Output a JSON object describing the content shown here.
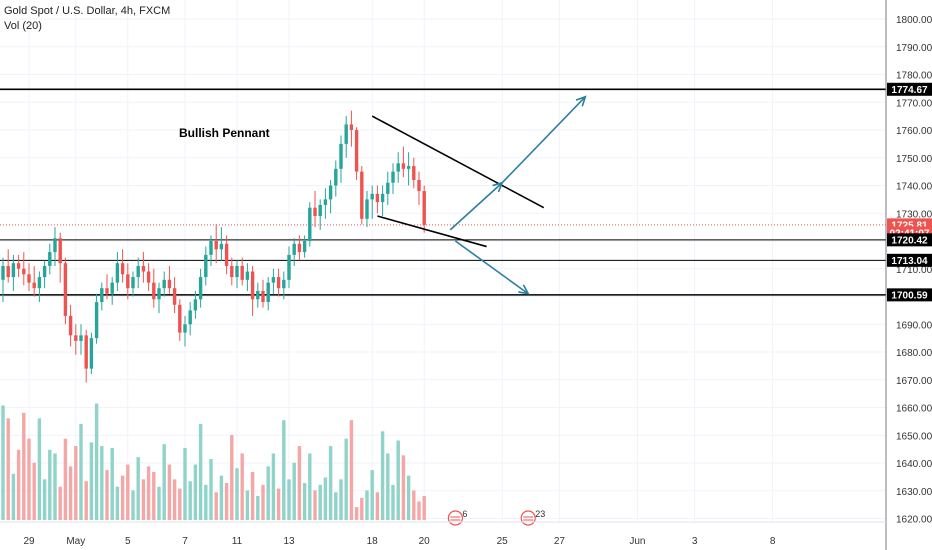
{
  "header": {
    "symbol_line": "Gold Spot / U.S. Dollar, 4h, FXCM",
    "volume_line": "Vol (20)"
  },
  "annotation": {
    "label": "Bullish Pennant"
  },
  "colors": {
    "up": "#26a69a",
    "down": "#ef5350",
    "up_volume": "#8fd3c9",
    "down_volume": "#f4a7a6",
    "arrow": "#2a7fa0",
    "level_line": "#000000",
    "price_marker": "#ef5350"
  },
  "chart_data": {
    "type": "candlestick",
    "title": "Gold Spot / U.S. Dollar, 4h, FXCM",
    "timeframe": "4h",
    "y_axis": {
      "min": 1615,
      "max": 1805,
      "ticks": [
        1620,
        1630,
        1640,
        1650,
        1660,
        1670,
        1680,
        1690,
        1700,
        1710,
        1720,
        1730,
        1740,
        1750,
        1760,
        1770,
        1780,
        1790,
        1800
      ],
      "tick_labels": [
        "1620.00",
        "1630.00",
        "1640.00",
        "1650.00",
        "1660.00",
        "1670.00",
        "1680.00",
        "1690.00",
        "1700.00",
        "1710.00",
        "1720.00",
        "1730.00",
        "1740.00",
        "1750.00",
        "1760.00",
        "1770.00",
        "1780.00",
        "1790.00",
        "1800.00"
      ]
    },
    "x_axis": {
      "ticks": [
        {
          "label": "29",
          "bar": 5
        },
        {
          "label": "May",
          "bar": 14
        },
        {
          "label": "5",
          "bar": 24
        },
        {
          "label": "7",
          "bar": 35
        },
        {
          "label": "11",
          "bar": 45
        },
        {
          "label": "13",
          "bar": 55
        },
        {
          "label": "18",
          "bar": 71
        },
        {
          "label": "20",
          "bar": 81
        },
        {
          "label": "25",
          "bar": 96
        },
        {
          "label": "27",
          "bar": 107
        },
        {
          "label": "Jun",
          "bar": 122
        },
        {
          "label": "3",
          "bar": 133
        },
        {
          "label": "8",
          "bar": 148
        }
      ]
    },
    "ohlc": [
      [
        1706,
        1714,
        1698,
        1711
      ],
      [
        1711,
        1717,
        1705,
        1707
      ],
      [
        1707,
        1715,
        1702,
        1712
      ],
      [
        1712,
        1715,
        1707,
        1710
      ],
      [
        1710,
        1716,
        1704,
        1708
      ],
      [
        1708,
        1712,
        1702,
        1705
      ],
      [
        1705,
        1711,
        1700,
        1703
      ],
      [
        1703,
        1709,
        1698,
        1707
      ],
      [
        1707,
        1713,
        1703,
        1711
      ],
      [
        1711,
        1719,
        1708,
        1716
      ],
      [
        1716,
        1725,
        1711,
        1721
      ],
      [
        1721,
        1723,
        1705,
        1712
      ],
      [
        1712,
        1714,
        1690,
        1693
      ],
      [
        1693,
        1697,
        1682,
        1686
      ],
      [
        1686,
        1690,
        1679,
        1684
      ],
      [
        1684,
        1690,
        1679,
        1686
      ],
      [
        1686,
        1688,
        1669,
        1674
      ],
      [
        1674,
        1687,
        1672,
        1685
      ],
      [
        1685,
        1701,
        1683,
        1698
      ],
      [
        1698,
        1705,
        1695,
        1703
      ],
      [
        1703,
        1708,
        1699,
        1701
      ],
      [
        1701,
        1707,
        1697,
        1705
      ],
      [
        1705,
        1716,
        1702,
        1712
      ],
      [
        1712,
        1717,
        1705,
        1708
      ],
      [
        1708,
        1712,
        1699,
        1703
      ],
      [
        1703,
        1709,
        1700,
        1707
      ],
      [
        1707,
        1714,
        1703,
        1711
      ],
      [
        1711,
        1716,
        1705,
        1709
      ],
      [
        1709,
        1712,
        1702,
        1705
      ],
      [
        1705,
        1710,
        1696,
        1699
      ],
      [
        1699,
        1705,
        1694,
        1703
      ],
      [
        1703,
        1709,
        1700,
        1706
      ],
      [
        1706,
        1711,
        1701,
        1703
      ],
      [
        1703,
        1707,
        1694,
        1697
      ],
      [
        1697,
        1699,
        1684,
        1687
      ],
      [
        1687,
        1693,
        1682,
        1690
      ],
      [
        1690,
        1698,
        1686,
        1695
      ],
      [
        1695,
        1702,
        1692,
        1699
      ],
      [
        1699,
        1710,
        1696,
        1707
      ],
      [
        1707,
        1718,
        1704,
        1715
      ],
      [
        1715,
        1722,
        1711,
        1720
      ],
      [
        1720,
        1726,
        1712,
        1717
      ],
      [
        1717,
        1725,
        1713,
        1719
      ],
      [
        1719,
        1722,
        1708,
        1711
      ],
      [
        1711,
        1714,
        1704,
        1707
      ],
      [
        1707,
        1713,
        1703,
        1711
      ],
      [
        1711,
        1714,
        1704,
        1706
      ],
      [
        1706,
        1712,
        1702,
        1709
      ],
      [
        1709,
        1711,
        1693,
        1699
      ],
      [
        1699,
        1705,
        1696,
        1702
      ],
      [
        1702,
        1706,
        1696,
        1698
      ],
      [
        1698,
        1707,
        1695,
        1705
      ],
      [
        1705,
        1710,
        1701,
        1707
      ],
      [
        1707,
        1710,
        1700,
        1703
      ],
      [
        1703,
        1709,
        1699,
        1706
      ],
      [
        1706,
        1718,
        1703,
        1715
      ],
      [
        1715,
        1721,
        1711,
        1719
      ],
      [
        1719,
        1722,
        1713,
        1716
      ],
      [
        1716,
        1722,
        1714,
        1720
      ],
      [
        1720,
        1734,
        1718,
        1732
      ],
      [
        1732,
        1738,
        1725,
        1729
      ],
      [
        1729,
        1735,
        1724,
        1733
      ],
      [
        1733,
        1739,
        1728,
        1735
      ],
      [
        1735,
        1742,
        1730,
        1740
      ],
      [
        1740,
        1749,
        1736,
        1746
      ],
      [
        1746,
        1758,
        1741,
        1755
      ],
      [
        1755,
        1765,
        1750,
        1762
      ],
      [
        1762,
        1767,
        1754,
        1760
      ],
      [
        1760,
        1761,
        1742,
        1745
      ],
      [
        1745,
        1747,
        1726,
        1728
      ],
      [
        1728,
        1738,
        1725,
        1735
      ],
      [
        1735,
        1740,
        1728,
        1737
      ],
      [
        1737,
        1740,
        1730,
        1734
      ],
      [
        1734,
        1740,
        1729,
        1737
      ],
      [
        1737,
        1745,
        1733,
        1741
      ],
      [
        1741,
        1748,
        1737,
        1745
      ],
      [
        1745,
        1752,
        1741,
        1748
      ],
      [
        1748,
        1754,
        1743,
        1746
      ],
      [
        1746,
        1752,
        1740,
        1747
      ],
      [
        1747,
        1750,
        1739,
        1742
      ],
      [
        1742,
        1745,
        1733,
        1738
      ],
      [
        1738,
        1740,
        1723,
        1725.81
      ]
    ],
    "volume": [
      62,
      55,
      25,
      38,
      58,
      44,
      31,
      55,
      22,
      38,
      36,
      18,
      44,
      29,
      40,
      52,
      21,
      42,
      63,
      40,
      27,
      39,
      18,
      24,
      30,
      16,
      34,
      22,
      29,
      26,
      18,
      41,
      30,
      22,
      17,
      39,
      21,
      30,
      52,
      19,
      33,
      15,
      24,
      20,
      46,
      28,
      36,
      16,
      26,
      13,
      19,
      29,
      36,
      17,
      54,
      22,
      31,
      40,
      20,
      36,
      16,
      19,
      23,
      40,
      15,
      22,
      44,
      54,
      7,
      12,
      16,
      27,
      15,
      48,
      36,
      19,
      43,
      35,
      24,
      16,
      10,
      13
    ],
    "volume_axis": {
      "min": 0,
      "max": 66
    },
    "horizontal_levels": [
      1774.67,
      1720.42,
      1713.04,
      1700.59
    ],
    "current_price": 1725.81,
    "price_labels": [
      {
        "text": "1774.67",
        "value": 1774.67,
        "style": "black"
      },
      {
        "text": "1725.81",
        "value": 1725.81,
        "style": "red"
      },
      {
        "text": "02:41:07",
        "value": 1722.9,
        "style": "red"
      },
      {
        "text": "1720.42",
        "value": 1720.42,
        "style": "black"
      },
      {
        "text": "1713.04",
        "value": 1713.04,
        "style": "black"
      },
      {
        "text": "1700.59",
        "value": 1700.59,
        "style": "black"
      }
    ],
    "trendlines": [
      {
        "from": {
          "bar": 71,
          "price": 1765
        },
        "to": {
          "bar": 104,
          "price": 1732
        }
      },
      {
        "from": {
          "bar": 72,
          "price": 1729
        },
        "to": {
          "bar": 93,
          "price": 1718
        }
      }
    ],
    "arrows": [
      {
        "from": {
          "bar": 86,
          "price": 1724
        },
        "to": {
          "bar": 96,
          "price": 1741
        }
      },
      {
        "from": {
          "bar": 96,
          "price": 1741
        },
        "to": {
          "bar": 112,
          "price": 1772
        }
      },
      {
        "from": {
          "bar": 87,
          "price": 1720
        },
        "to": {
          "bar": 101,
          "price": 1701
        }
      }
    ],
    "event_markers": [
      {
        "label": "6",
        "bar": 87
      },
      {
        "label": "23",
        "bar": 101
      }
    ]
  }
}
